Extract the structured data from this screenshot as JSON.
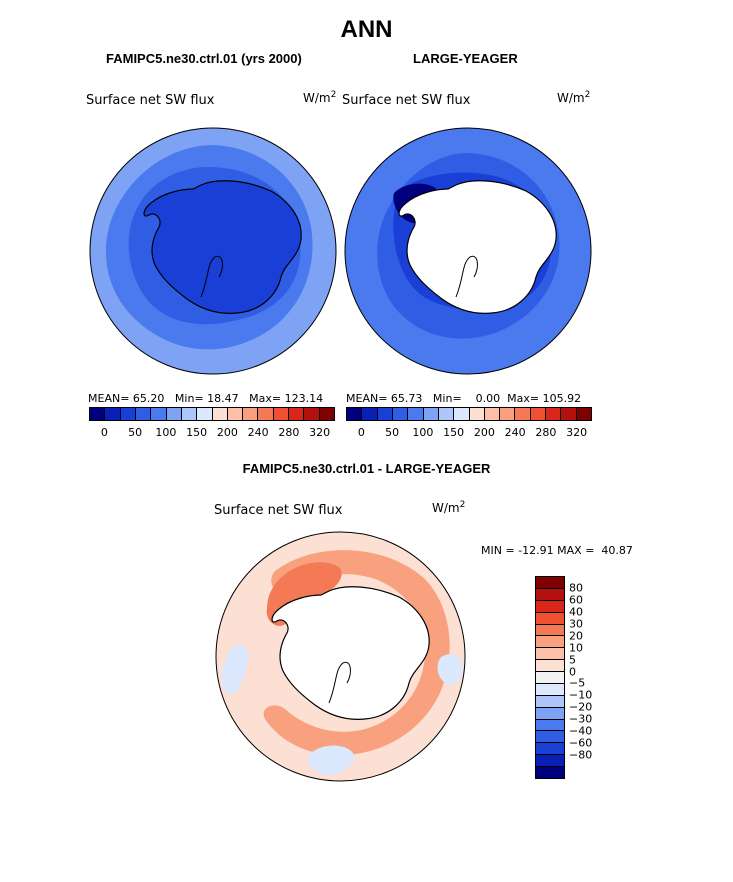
{
  "page_title": "ANN",
  "colors": {
    "abs_scale": [
      "#00007f",
      "#0a1fb5",
      "#1a3fd6",
      "#2f5ee5",
      "#4a7aed",
      "#7ea3f5",
      "#adc7fa",
      "#dbe8fd",
      "#fde0d4",
      "#fcc0a8",
      "#f9a07f",
      "#f47a55",
      "#ee5030",
      "#d9261a",
      "#b3110f",
      "#7f0000"
    ],
    "diff_scale": [
      "#7f0000",
      "#b3110f",
      "#d9261a",
      "#ee5030",
      "#f47a55",
      "#f9a07f",
      "#fcc0a8",
      "#fde0d4",
      "#f2f2f2",
      "#dbe8fd",
      "#adc7fa",
      "#7ea3f5",
      "#4a7aed",
      "#2f5ee5",
      "#1a3fd6",
      "#0a1fb5",
      "#00007f"
    ],
    "land": "#ffffff",
    "outline": "#000000"
  },
  "chart_data": [
    {
      "type": "heatmap",
      "title": "FAMIPC5.ne30.ctrl.01 (yrs 2000)",
      "variable": "Surface net SW flux",
      "units": "W/m",
      "units_exp": "2",
      "projection": "polar-stereographic south",
      "stats": {
        "mean_label": "MEAN=",
        "mean": "65.20",
        "min_label": "Min=",
        "min": "18.47",
        "max_label": "Max=",
        "max": "123.14"
      },
      "levels": [
        "0",
        "50",
        "100",
        "150",
        "200",
        "240",
        "280",
        "320"
      ],
      "fill": {
        "ice_sheet": 2,
        "coastal_band": 3,
        "mid_ocean": 4,
        "outer_ocean": 5
      }
    },
    {
      "type": "heatmap",
      "title": "LARGE-YEAGER",
      "variable": "Surface net SW flux",
      "units": "W/m",
      "units_exp": "2",
      "projection": "polar-stereographic south",
      "stats": {
        "mean_label": "MEAN=",
        "mean": "65.73",
        "min_label": "Min=",
        "min": "0.00",
        "max_label": "Max=",
        "max": "105.92"
      },
      "levels": [
        "0",
        "50",
        "100",
        "150",
        "200",
        "240",
        "280",
        "320"
      ],
      "fill": {
        "ice_sheet": "land",
        "coastal_band": 2,
        "mid_ocean": 3,
        "outer_ocean": 4
      }
    },
    {
      "type": "heatmap",
      "title": "FAMIPC5.ne30.ctrl.01 - LARGE-YEAGER",
      "variable": "Surface net SW flux",
      "units": "W/m",
      "units_exp": "2",
      "projection": "polar-stereographic south",
      "stats": {
        "min_label": "MIN =",
        "min": "-12.91",
        "max_label": "MAX =",
        "max": "40.87"
      },
      "levels": [
        "80",
        "60",
        "40",
        "30",
        "20",
        "10",
        "5",
        "0",
        "−5",
        "−10",
        "−20",
        "−30",
        "−40",
        "−60",
        "−80"
      ],
      "fill": {
        "ice_sheet": "land",
        "weddell_sector": 4,
        "ring_band": 5,
        "ocean_base": 7,
        "light_patch": 9
      }
    }
  ]
}
